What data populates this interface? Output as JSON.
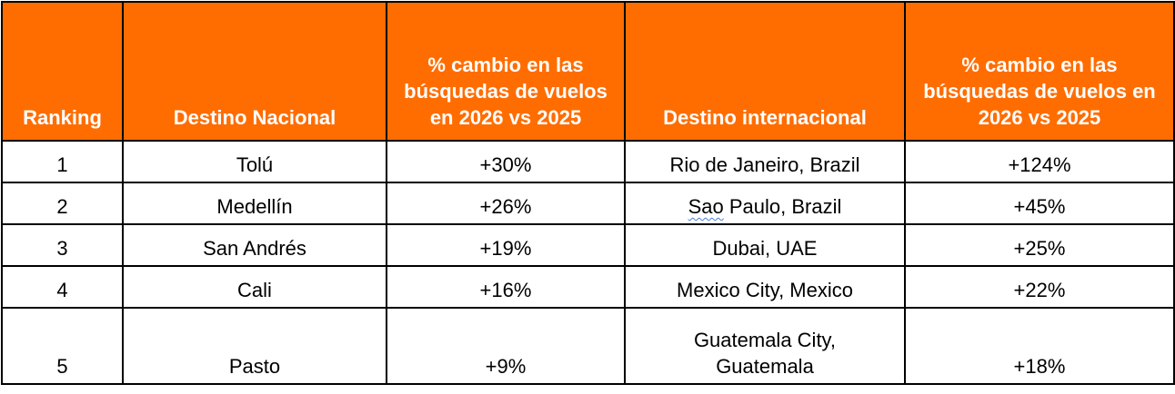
{
  "colors": {
    "header_bg": "#ff6d00",
    "header_text": "#ffffff"
  },
  "headers": [
    "Ranking",
    "Destino Nacional",
    "% cambio en las búsquedas de vuelos en 2026 vs 2025",
    "Destino internacional",
    "% cambio en las búsquedas de vuelos en 2026 vs 2025"
  ],
  "rows": [
    {
      "rank": "1",
      "national": "Tolú",
      "national_change": "+30%",
      "international": "Rio de Janeiro, Brazil",
      "international_change": "+124%"
    },
    {
      "rank": "2",
      "national": "Medellín",
      "national_change": "+26%",
      "international_a": "Sao",
      "international_b": " Paulo, Brazil",
      "international_change": "+45%"
    },
    {
      "rank": "3",
      "national": "San Andrés",
      "national_change": "+19%",
      "international": "Dubai, UAE",
      "international_change": "+25%"
    },
    {
      "rank": "4",
      "national": "Cali",
      "national_change": "+16%",
      "international": "Mexico City, Mexico",
      "international_change": "+22%"
    },
    {
      "rank": "5",
      "national": "Pasto",
      "national_change": "+9%",
      "international": "Guatemala City, Guatemala",
      "international_change": "+18%"
    }
  ]
}
